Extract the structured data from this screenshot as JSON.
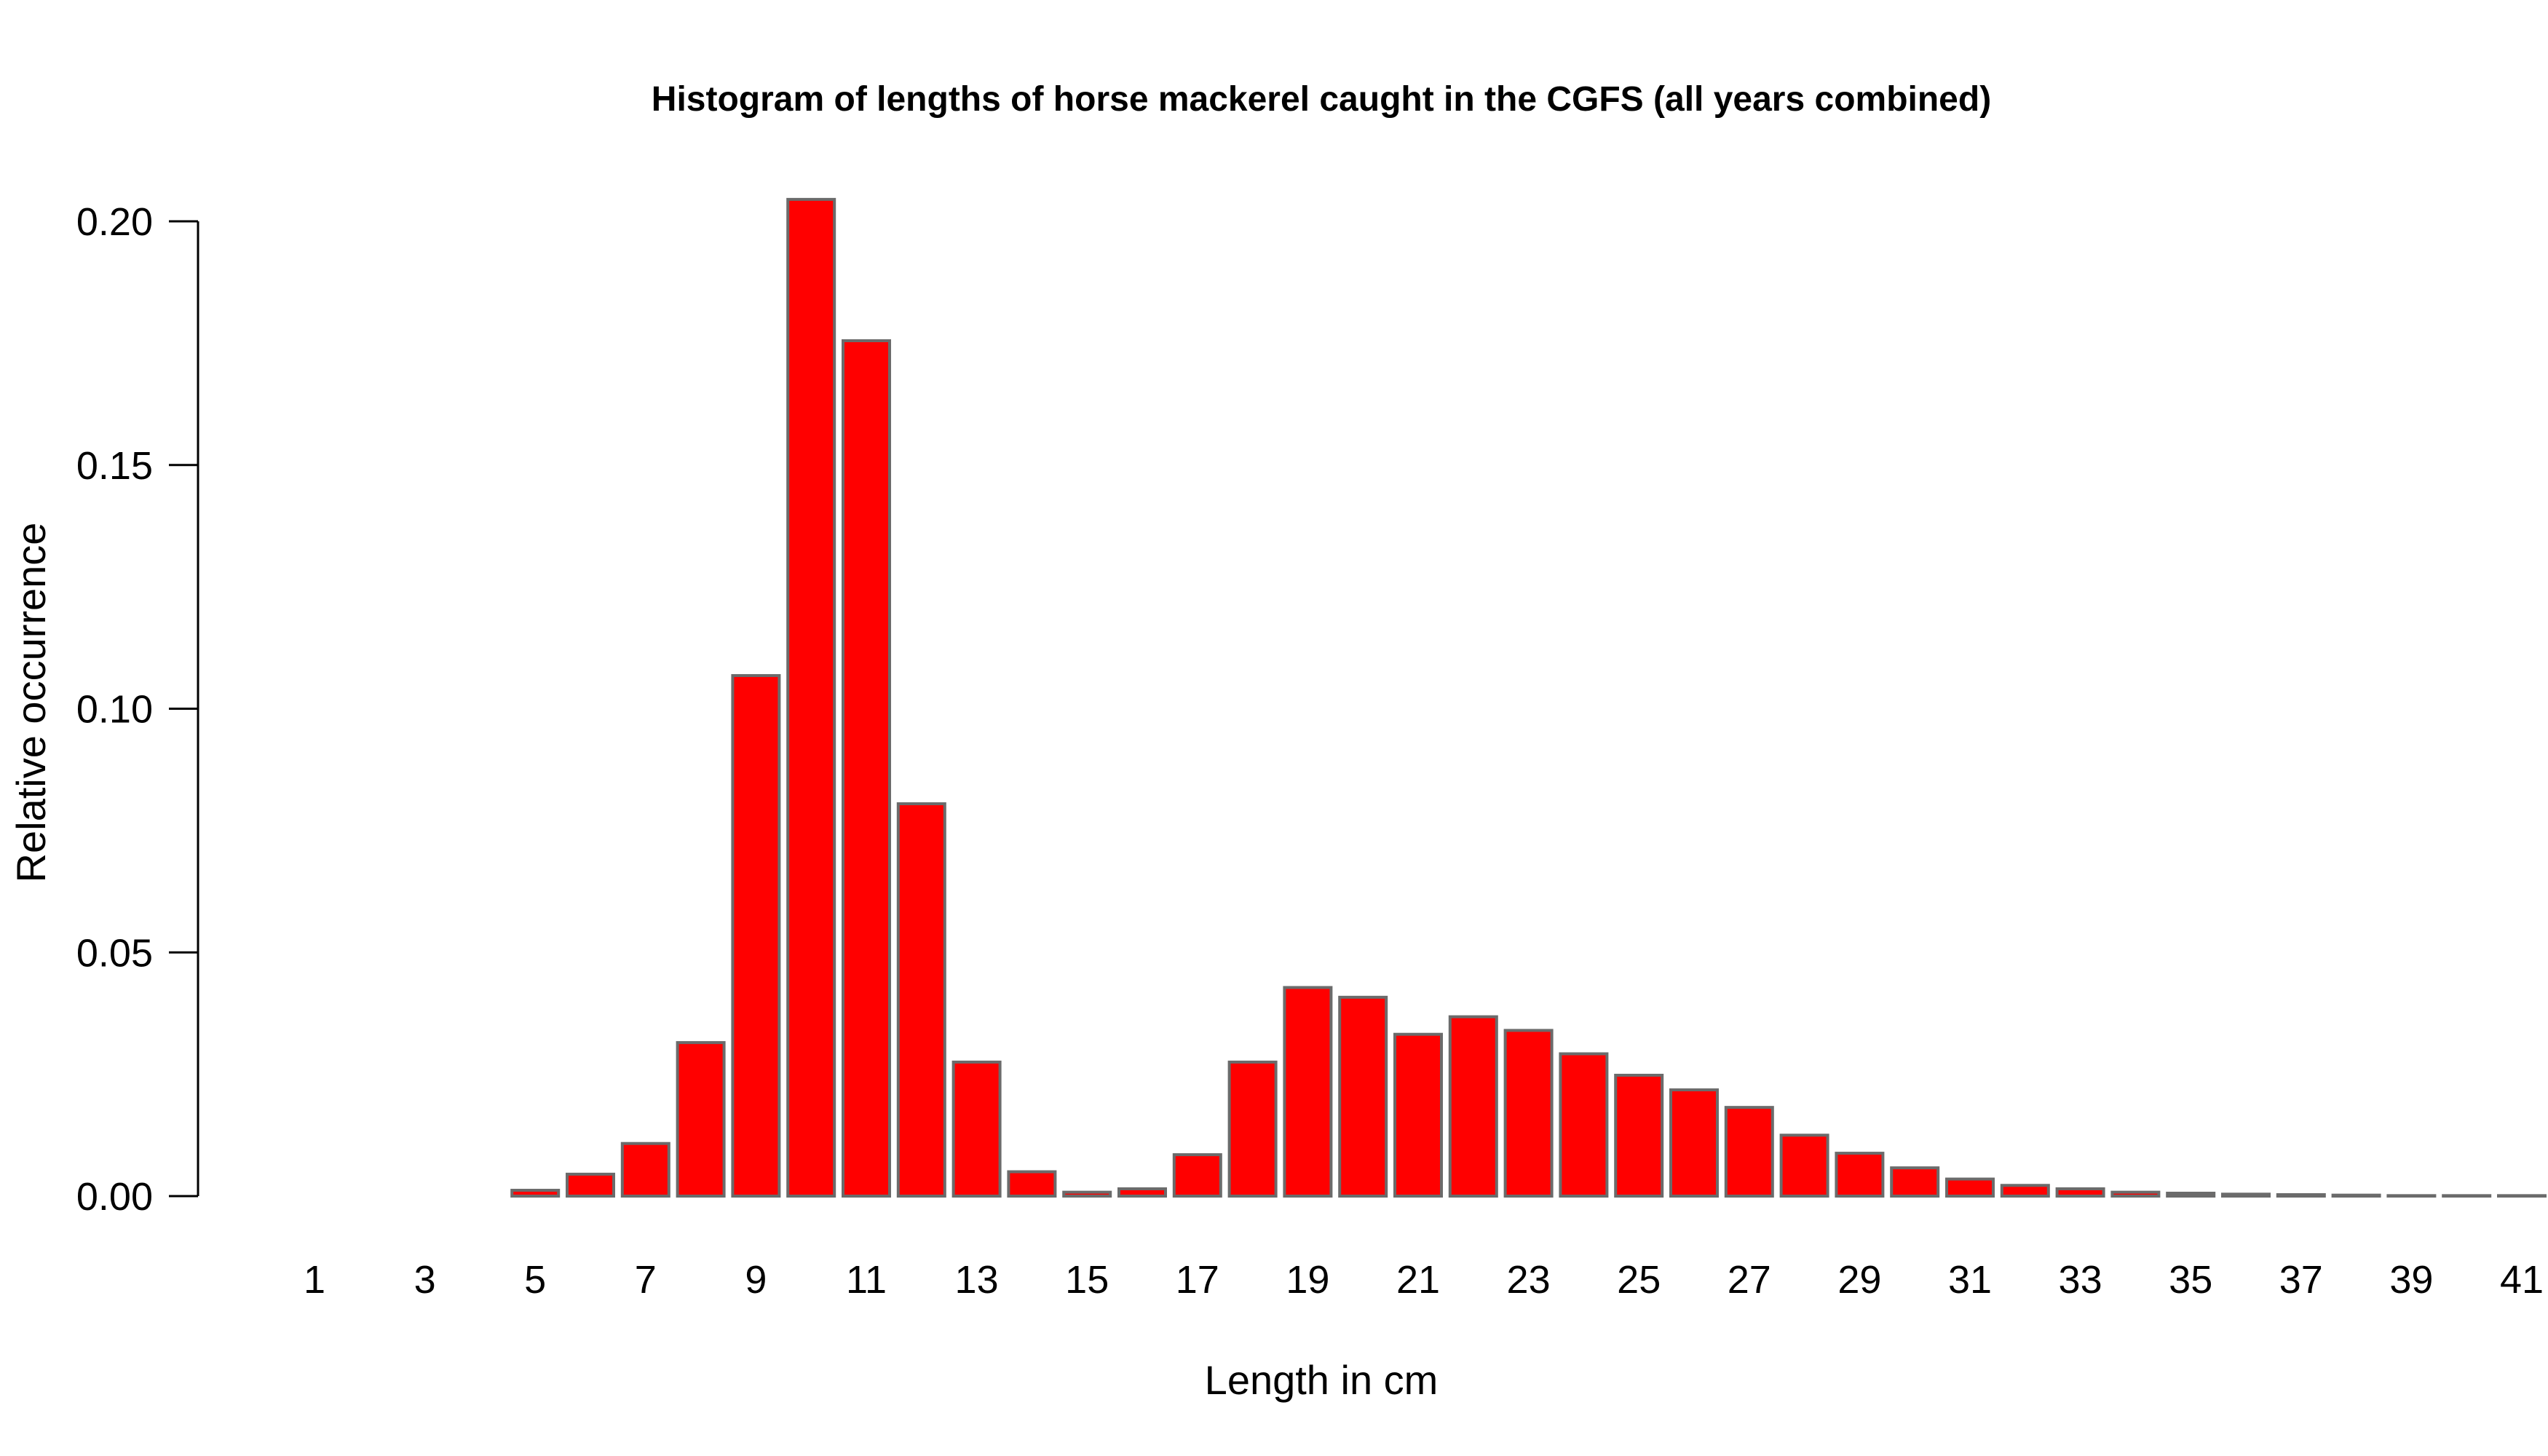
{
  "chart_data": {
    "type": "bar",
    "title": "Histogram of lengths of horse mackerel caught in the CGFS (all years combined)",
    "xlabel": "Length in cm",
    "ylabel": "Relative occurrence",
    "categories": [
      1,
      2,
      3,
      4,
      5,
      6,
      7,
      8,
      9,
      10,
      11,
      12,
      13,
      14,
      15,
      16,
      17,
      18,
      19,
      20,
      21,
      22,
      23,
      24,
      25,
      26,
      27,
      28,
      29,
      30,
      31,
      32,
      33,
      34,
      35,
      36,
      37,
      38,
      39,
      40,
      41
    ],
    "values": [
      0.0,
      0.0,
      0.0,
      0.0,
      0.0012,
      0.0045,
      0.0108,
      0.0315,
      0.1068,
      0.2045,
      0.1755,
      0.0805,
      0.0275,
      0.005,
      0.0008,
      0.0015,
      0.0085,
      0.0275,
      0.0428,
      0.0408,
      0.0332,
      0.0368,
      0.034,
      0.0292,
      0.0248,
      0.0218,
      0.0182,
      0.0125,
      0.0088,
      0.0058,
      0.0035,
      0.0022,
      0.0015,
      0.0008,
      0.0006,
      0.0004,
      0.0003,
      0.0002,
      0.0001,
      0.0001,
      0.0001
    ],
    "x_tick_labels": [
      "1",
      "3",
      "5",
      "7",
      "9",
      "11",
      "13",
      "15",
      "17",
      "19",
      "21",
      "23",
      "25",
      "27",
      "29",
      "31",
      "33",
      "35",
      "37",
      "39",
      "41"
    ],
    "y_ticks": [
      "0.00",
      "0.05",
      "0.10",
      "0.15",
      "0.20"
    ],
    "y_tick_values": [
      0.0,
      0.05,
      0.1,
      0.15,
      0.2
    ],
    "ylim": [
      0,
      0.2
    ],
    "grid": false,
    "legend": "none",
    "colors": {
      "bar_fill": "#ff0000",
      "bar_stroke": "#6b6b6b",
      "axis": "#000000",
      "background": "#ffffff"
    }
  }
}
